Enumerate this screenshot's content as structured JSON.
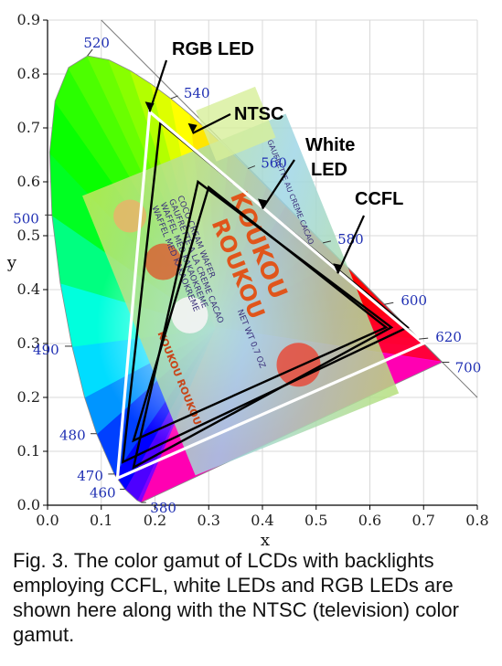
{
  "chart_data": {
    "type": "chromaticity-diagram",
    "xlabel": "x",
    "ylabel": "y",
    "xlim": [
      0.0,
      0.8
    ],
    "ylim": [
      0.0,
      0.9
    ],
    "x_ticks": [
      "0.0",
      "0.1",
      "0.2",
      "0.3",
      "0.4",
      "0.5",
      "0.6",
      "0.7",
      "0.8"
    ],
    "y_ticks": [
      "0.0",
      "0.1",
      "0.2",
      "0.3",
      "0.4",
      "0.5",
      "0.6",
      "0.7",
      "0.8",
      "0.9"
    ],
    "grid": true,
    "spectral_locus": [
      [
        0.1741,
        0.005
      ],
      [
        0.1666,
        0.0089
      ],
      [
        0.144,
        0.0297
      ],
      [
        0.1241,
        0.0578
      ],
      [
        0.0913,
        0.1327
      ],
      [
        0.0687,
        0.2007
      ],
      [
        0.0454,
        0.295
      ],
      [
        0.0235,
        0.4127
      ],
      [
        0.0082,
        0.5384
      ],
      [
        0.0039,
        0.6548
      ],
      [
        0.0139,
        0.7502
      ],
      [
        0.0389,
        0.812
      ],
      [
        0.0743,
        0.8338
      ],
      [
        0.1142,
        0.8262
      ],
      [
        0.1547,
        0.8059
      ],
      [
        0.1929,
        0.7816
      ],
      [
        0.2296,
        0.7543
      ],
      [
        0.2658,
        0.7243
      ],
      [
        0.3016,
        0.6923
      ],
      [
        0.3373,
        0.6589
      ],
      [
        0.3731,
        0.6245
      ],
      [
        0.4087,
        0.5896
      ],
      [
        0.4441,
        0.5547
      ],
      [
        0.4788,
        0.5202
      ],
      [
        0.5125,
        0.4866
      ],
      [
        0.5448,
        0.4544
      ],
      [
        0.5752,
        0.4242
      ],
      [
        0.6029,
        0.3965
      ],
      [
        0.627,
        0.3725
      ],
      [
        0.6482,
        0.3514
      ],
      [
        0.6658,
        0.334
      ],
      [
        0.6915,
        0.3083
      ],
      [
        0.7079,
        0.292
      ],
      [
        0.7347,
        0.2653
      ]
    ],
    "wavelength_labels": [
      {
        "label": "380",
        "x": 0.1741,
        "y": 0.005
      },
      {
        "label": "460",
        "x": 0.144,
        "y": 0.0297
      },
      {
        "label": "470",
        "x": 0.1241,
        "y": 0.0578
      },
      {
        "label": "480",
        "x": 0.0913,
        "y": 0.1327
      },
      {
        "label": "490",
        "x": 0.0454,
        "y": 0.295
      },
      {
        "label": "500",
        "x": 0.0082,
        "y": 0.5384
      },
      {
        "label": "520",
        "x": 0.0743,
        "y": 0.8338
      },
      {
        "label": "540",
        "x": 0.2296,
        "y": 0.7543
      },
      {
        "label": "560",
        "x": 0.3731,
        "y": 0.6245
      },
      {
        "label": "580",
        "x": 0.5125,
        "y": 0.4866
      },
      {
        "label": "600",
        "x": 0.627,
        "y": 0.3725
      },
      {
        "label": "620",
        "x": 0.6915,
        "y": 0.3083
      },
      {
        "label": "700",
        "x": 0.7347,
        "y": 0.2653
      }
    ],
    "gamuts": [
      {
        "name": "NTSC",
        "color": "#000000",
        "points": [
          [
            0.67,
            0.33
          ],
          [
            0.21,
            0.71
          ],
          [
            0.14,
            0.08
          ]
        ]
      },
      {
        "name": "CCFL",
        "color": "#000000",
        "points": [
          [
            0.64,
            0.33
          ],
          [
            0.28,
            0.6
          ],
          [
            0.16,
            0.07
          ]
        ]
      },
      {
        "name": "White LED",
        "color": "#000000",
        "points": [
          [
            0.63,
            0.33
          ],
          [
            0.3,
            0.59
          ],
          [
            0.16,
            0.12
          ]
        ]
      },
      {
        "name": "RGB LED",
        "color": "#ffffff",
        "points": [
          [
            0.7,
            0.3
          ],
          [
            0.19,
            0.73
          ],
          [
            0.13,
            0.05
          ]
        ]
      }
    ],
    "annotations": [
      {
        "label": "RGB LED",
        "x": 0.19,
        "y": 0.73
      },
      {
        "label": "NTSC",
        "x": 0.27,
        "y": 0.68
      },
      {
        "label": "White",
        "x": 0.43,
        "y": 0.58
      },
      {
        "label": "LED",
        "x": 0.43,
        "y": 0.58
      },
      {
        "label": "CCFL",
        "x": 0.54,
        "y": 0.41
      }
    ],
    "photo_inset": {
      "brand_title": "KOUKOU",
      "brand_subtitle": "ROUKOU",
      "side_text": "KOUKOU ROUKOU",
      "product_lines": [
        "COCO CREAM WAFER",
        "GAUFRETTE A LA CREME CACAO",
        "WAFFEL MED KAKAOKREME",
        "WAFFEL MED KAKAOKREME"
      ],
      "weight": "NET WT 0.7 OZ",
      "side_note": "GAUFRETTE AU CREME CACAO"
    }
  },
  "caption": "Fig. 3. The color gamut of LCDs with backlights employing CCFL, white LEDs and RGB LEDs are shown here along with the NTSC (television) color gamut."
}
